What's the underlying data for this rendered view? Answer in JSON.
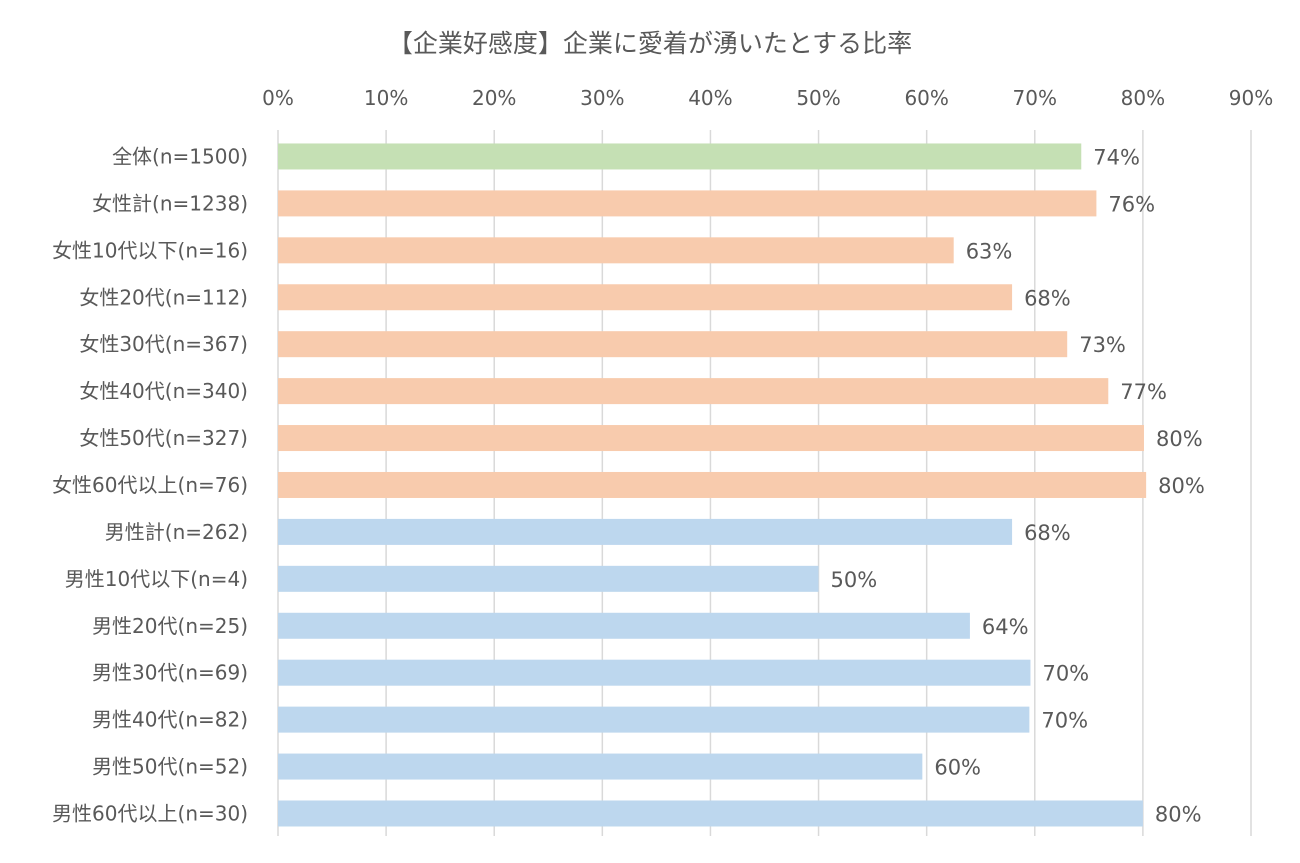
{
  "chart_data": {
    "type": "bar",
    "orientation": "horizontal",
    "title": "【企業好感度】企業に愛着が湧いたとする比率",
    "xlim": [
      0,
      90
    ],
    "x_ticks": [
      0,
      10,
      20,
      30,
      40,
      50,
      60,
      70,
      80,
      90
    ],
    "x_tick_labels": [
      "0%",
      "10%",
      "20%",
      "30%",
      "40%",
      "50%",
      "60%",
      "70%",
      "80%",
      "90%"
    ],
    "x_axis_position": "top",
    "grid": "vertical",
    "legend": "none",
    "categories": [
      "全体(n=1500)",
      "女性計(n=1238)",
      "女性10代以下(n=16)",
      "女性20代(n=112)",
      "女性30代(n=367)",
      "女性40代(n=340)",
      "女性50代(n=327)",
      "女性60代以上(n=76)",
      "男性計(n=262)",
      "男性10代以下(n=4)",
      "男性20代(n=25)",
      "男性30代(n=69)",
      "男性40代(n=82)",
      "男性50代(n=52)",
      "男性60代以上(n=30)"
    ],
    "values": [
      74.3,
      75.7,
      62.5,
      67.9,
      73.0,
      76.8,
      80.1,
      80.3,
      67.9,
      50.0,
      64.0,
      69.6,
      69.5,
      59.6,
      80.0
    ],
    "data_labels": [
      "74%",
      "76%",
      "63%",
      "68%",
      "73%",
      "77%",
      "80%",
      "80%",
      "68%",
      "50%",
      "64%",
      "70%",
      "70%",
      "60%",
      "80%"
    ],
    "group_colors": {
      "total": "#c5e0b4",
      "female": "#f8cbad",
      "male": "#bdd7ee"
    },
    "bar_groups": [
      "total",
      "female",
      "female",
      "female",
      "female",
      "female",
      "female",
      "female",
      "male",
      "male",
      "male",
      "male",
      "male",
      "male",
      "male"
    ],
    "grid_color": "#d9d9d9",
    "text_color": "#595959"
  }
}
